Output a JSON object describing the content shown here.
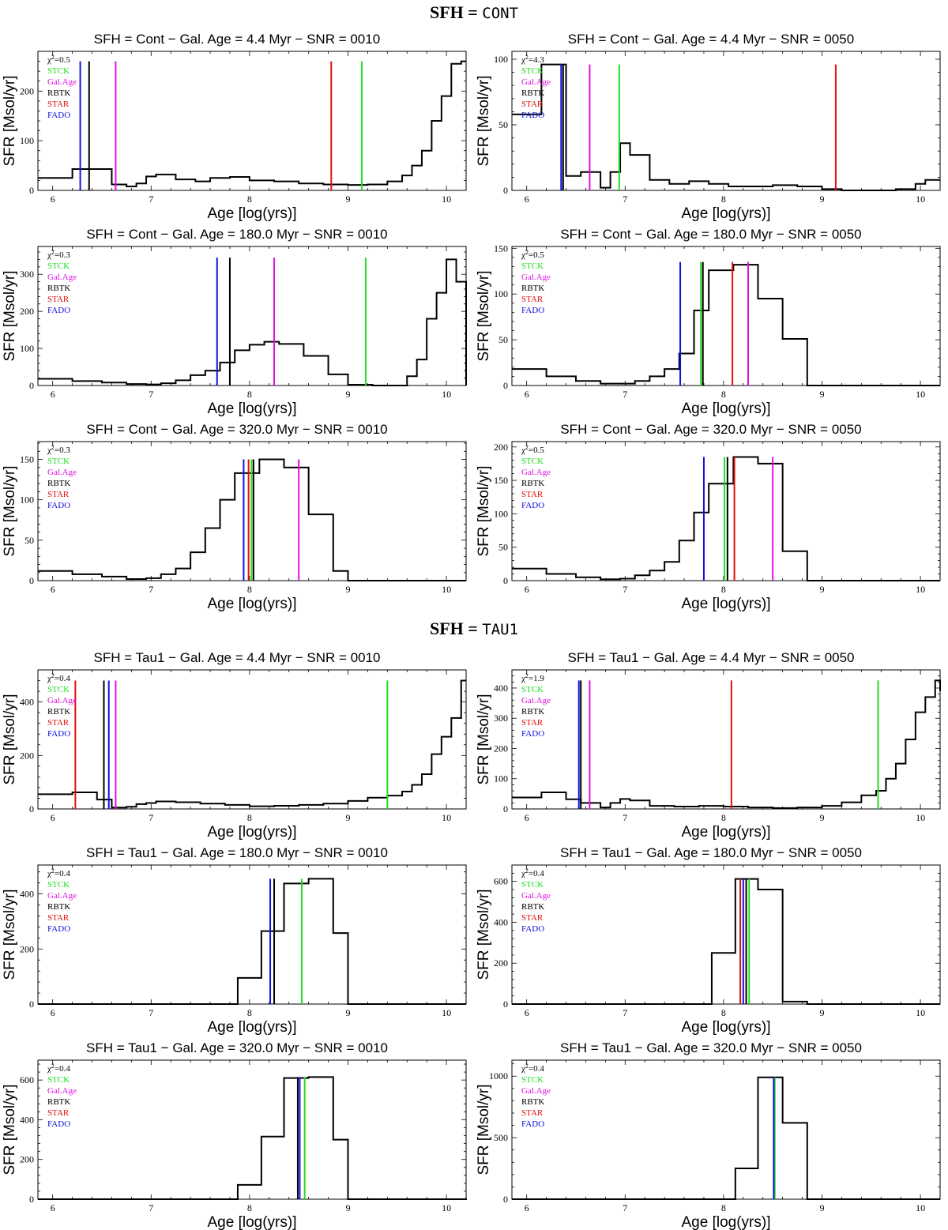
{
  "sections": [
    {
      "label": "SFH = ",
      "code": "CONT"
    },
    {
      "label": "SFH = ",
      "code": "TAU1"
    }
  ],
  "legend_colors": {
    "STCK": "#22dd22",
    "Gal.Age": "#e010e0",
    "RBTK": "#000000",
    "STAR": "#e01010",
    "FADO": "#1010e0"
  },
  "chart_data": [
    {
      "type": "line",
      "title": "SFH = Cont − Gal. Age = 4.4 Myr − SNR = 0010",
      "xlabel": "Age [log(yrs)]",
      "ylabel": "SFR [Msol/yr]",
      "xlim": [
        5.85,
        10.2
      ],
      "ylim": [
        0,
        280
      ],
      "yticks": [
        0,
        100,
        200
      ],
      "xticks": [
        6,
        7,
        8,
        9,
        10
      ],
      "chi2": "=0.5",
      "series": [
        {
          "name": "SFH",
          "x": [
            5.85,
            6.2,
            6.5,
            6.6,
            6.75,
            6.85,
            6.95,
            7.05,
            7.25,
            7.45,
            7.6,
            7.8,
            8.0,
            8.25,
            8.5,
            8.75,
            9.0,
            9.2,
            9.4,
            9.55,
            9.65,
            9.75,
            9.85,
            9.95,
            10.05,
            10.15,
            10.2
          ],
          "y": [
            25,
            43,
            43,
            12,
            8,
            14,
            28,
            32,
            22,
            18,
            25,
            27,
            20,
            18,
            14,
            12,
            11,
            12,
            18,
            30,
            50,
            80,
            140,
            190,
            255,
            260,
            260
          ]
        }
      ],
      "markers": [
        {
          "label": "FADO",
          "x": 6.28,
          "top": 260
        },
        {
          "label": "RBTK",
          "x": 6.37,
          "top": 260
        },
        {
          "label": "Gal.Age",
          "x": 6.64,
          "top": 260
        },
        {
          "label": "STAR",
          "x": 8.83,
          "top": 260
        },
        {
          "label": "STCK",
          "x": 9.14,
          "top": 260
        }
      ]
    },
    {
      "type": "line",
      "title": "SFH = Cont − Gal. Age = 4.4 Myr − SNR = 0050",
      "xlabel": "Age [log(yrs)]",
      "ylabel": "SFR [Msol/yr]",
      "xlim": [
        5.85,
        10.2
      ],
      "ylim": [
        0,
        106
      ],
      "yticks": [
        0,
        50,
        100
      ],
      "xticks": [
        6,
        7,
        8,
        9,
        10
      ],
      "chi2": "=4.3",
      "series": [
        {
          "name": "SFH",
          "x": [
            5.85,
            6.15,
            6.4,
            6.55,
            6.75,
            6.85,
            6.95,
            7.05,
            7.25,
            7.45,
            7.65,
            7.85,
            8.05,
            8.25,
            8.5,
            8.75,
            9.0,
            9.2,
            9.5,
            9.75,
            9.95,
            10.05,
            10.2
          ],
          "y": [
            58,
            96,
            11,
            14,
            2,
            14,
            36,
            27,
            8,
            5,
            7,
            5,
            3,
            3,
            4,
            3,
            1,
            0,
            0,
            1,
            5,
            8,
            8
          ]
        }
      ],
      "markers": [
        {
          "label": "FADO",
          "x": 6.35,
          "top": 96
        },
        {
          "label": "RBTK",
          "x": 6.37,
          "top": 96
        },
        {
          "label": "Gal.Age",
          "x": 6.64,
          "top": 96
        },
        {
          "label": "STCK",
          "x": 6.94,
          "top": 96
        },
        {
          "label": "STAR",
          "x": 9.14,
          "top": 96
        }
      ]
    },
    {
      "type": "line",
      "title": "SFH = Cont − Gal. Age = 180.0 Myr − SNR = 0010",
      "xlabel": "Age [log(yrs)]",
      "ylabel": "SFR [Msol/yr]",
      "xlim": [
        5.85,
        10.2
      ],
      "ylim": [
        0,
        375
      ],
      "yticks": [
        0,
        100,
        200,
        300
      ],
      "xticks": [
        6,
        7,
        8,
        9,
        10
      ],
      "chi2": "=0.3",
      "series": [
        {
          "name": "SFH",
          "x": [
            5.85,
            6.2,
            6.5,
            6.75,
            6.95,
            7.1,
            7.25,
            7.4,
            7.55,
            7.7,
            7.85,
            8.0,
            8.15,
            8.3,
            8.55,
            8.8,
            9.0,
            9.25,
            9.6,
            9.7,
            9.8,
            9.9,
            10.0,
            10.1,
            10.2
          ],
          "y": [
            18,
            12,
            8,
            4,
            3,
            6,
            14,
            28,
            40,
            62,
            95,
            110,
            118,
            112,
            80,
            30,
            2,
            0,
            25,
            70,
            180,
            250,
            340,
            280,
            0
          ]
        }
      ],
      "markers": [
        {
          "label": "FADO",
          "x": 7.67,
          "top": 345
        },
        {
          "label": "RBTK",
          "x": 7.8,
          "top": 345
        },
        {
          "label": "Gal.Age",
          "x": 8.25,
          "top": 345
        },
        {
          "label": "STCK",
          "x": 9.18,
          "top": 345
        }
      ]
    },
    {
      "type": "line",
      "title": "SFH = Cont − Gal. Age = 180.0 Myr − SNR = 0050",
      "xlabel": "Age [log(yrs)]",
      "ylabel": "SFR [Msol/yr]",
      "xlim": [
        5.85,
        10.2
      ],
      "ylim": [
        0,
        152
      ],
      "yticks": [
        0,
        50,
        100,
        150
      ],
      "xticks": [
        6,
        7,
        8,
        9,
        10
      ],
      "chi2": "=0.5",
      "series": [
        {
          "name": "SFH",
          "x": [
            5.85,
            6.2,
            6.5,
            6.75,
            6.95,
            7.1,
            7.25,
            7.4,
            7.55,
            7.7,
            7.85,
            8.1,
            8.35,
            8.6,
            8.85,
            9.0,
            9.2,
            9.5,
            10.2
          ],
          "y": [
            18,
            10,
            5,
            2,
            2,
            5,
            10,
            18,
            35,
            82,
            126,
            132,
            95,
            51,
            0,
            0,
            0,
            0,
            0
          ]
        }
      ],
      "markers": [
        {
          "label": "FADO",
          "x": 7.56,
          "top": 135
        },
        {
          "label": "STCK",
          "x": 7.77,
          "top": 135
        },
        {
          "label": "RBTK",
          "x": 7.79,
          "top": 135
        },
        {
          "label": "STAR",
          "x": 8.09,
          "top": 135
        },
        {
          "label": "Gal.Age",
          "x": 8.25,
          "top": 135
        }
      ]
    },
    {
      "type": "line",
      "title": "SFH = Cont − Gal. Age = 320.0 Myr − SNR = 0010",
      "xlabel": "Age [log(yrs)]",
      "ylabel": "SFR [Msol/yr]",
      "xlim": [
        5.85,
        10.2
      ],
      "ylim": [
        0,
        172
      ],
      "yticks": [
        0,
        50,
        100,
        150
      ],
      "xticks": [
        6,
        7,
        8,
        9,
        10
      ],
      "chi2": "=0.3",
      "series": [
        {
          "name": "SFH",
          "x": [
            5.85,
            6.2,
            6.5,
            6.75,
            6.95,
            7.1,
            7.25,
            7.4,
            7.55,
            7.7,
            7.85,
            8.1,
            8.35,
            8.6,
            8.85,
            9.0,
            9.2,
            9.5,
            10.2
          ],
          "y": [
            12,
            8,
            5,
            2,
            3,
            8,
            15,
            35,
            65,
            100,
            133,
            150,
            140,
            82,
            12,
            0,
            0,
            0,
            0
          ]
        }
      ],
      "markers": [
        {
          "label": "FADO",
          "x": 7.94,
          "top": 150
        },
        {
          "label": "STAR",
          "x": 7.99,
          "top": 150
        },
        {
          "label": "STCK",
          "x": 8.02,
          "top": 150
        },
        {
          "label": "RBTK",
          "x": 8.04,
          "top": 150
        },
        {
          "label": "Gal.Age",
          "x": 8.5,
          "top": 150
        }
      ]
    },
    {
      "type": "line",
      "title": "SFH = Cont − Gal. Age = 320.0 Myr − SNR = 0050",
      "xlabel": "Age [log(yrs)]",
      "ylabel": "SFR [Msol/yr]",
      "xlim": [
        5.85,
        10.2
      ],
      "ylim": [
        0,
        208
      ],
      "yticks": [
        0,
        50,
        100,
        150,
        200
      ],
      "xticks": [
        6,
        7,
        8,
        9,
        10
      ],
      "chi2": "=0.5",
      "series": [
        {
          "name": "SFH",
          "x": [
            5.85,
            6.2,
            6.5,
            6.75,
            6.95,
            7.1,
            7.25,
            7.4,
            7.55,
            7.7,
            7.85,
            8.1,
            8.35,
            8.6,
            8.85,
            9.0,
            9.2,
            9.5,
            10.2
          ],
          "y": [
            18,
            10,
            5,
            2,
            3,
            8,
            15,
            28,
            60,
            102,
            145,
            185,
            175,
            44,
            0,
            0,
            0,
            0,
            0
          ]
        }
      ],
      "markers": [
        {
          "label": "FADO",
          "x": 7.8,
          "top": 185
        },
        {
          "label": "STCK",
          "x": 8.01,
          "top": 185
        },
        {
          "label": "RBTK",
          "x": 8.04,
          "top": 185
        },
        {
          "label": "STAR",
          "x": 8.11,
          "top": 185
        },
        {
          "label": "Gal.Age",
          "x": 8.5,
          "top": 185
        }
      ]
    },
    {
      "type": "line",
      "title": "SFH = Tau1 − Gal. Age = 4.4 Myr − SNR = 0010",
      "xlabel": "Age [log(yrs)]",
      "ylabel": "SFR [Msol/yr]",
      "xlim": [
        5.85,
        10.2
      ],
      "ylim": [
        0,
        520
      ],
      "yticks": [
        0,
        200,
        400
      ],
      "xticks": [
        6,
        7,
        8,
        9,
        10
      ],
      "chi2": "=0.4",
      "series": [
        {
          "name": "SFH",
          "x": [
            5.85,
            6.2,
            6.45,
            6.6,
            6.75,
            6.85,
            6.95,
            7.05,
            7.25,
            7.5,
            7.75,
            8.0,
            8.25,
            8.5,
            8.75,
            9.0,
            9.2,
            9.4,
            9.55,
            9.65,
            9.75,
            9.85,
            9.95,
            10.05,
            10.15,
            10.2
          ],
          "y": [
            55,
            62,
            35,
            5,
            8,
            18,
            22,
            28,
            25,
            20,
            15,
            10,
            12,
            15,
            20,
            30,
            42,
            50,
            65,
            90,
            130,
            205,
            270,
            340,
            480,
            480
          ]
        }
      ],
      "markers": [
        {
          "label": "STAR",
          "x": 6.23,
          "top": 480
        },
        {
          "label": "RBTK",
          "x": 6.52,
          "top": 480
        },
        {
          "label": "FADO",
          "x": 6.57,
          "top": 480
        },
        {
          "label": "Gal.Age",
          "x": 6.64,
          "top": 480
        },
        {
          "label": "STCK",
          "x": 9.4,
          "top": 480
        }
      ]
    },
    {
      "type": "line",
      "title": "SFH = Tau1 − Gal. Age = 4.4 Myr − SNR = 0050",
      "xlabel": "Age [log(yrs)]",
      "ylabel": "SFR [Msol/yr]",
      "xlim": [
        5.85,
        10.2
      ],
      "ylim": [
        0,
        460
      ],
      "yticks": [
        0,
        100,
        200,
        300,
        400
      ],
      "xticks": [
        6,
        7,
        8,
        9,
        10
      ],
      "chi2": "=1.9",
      "series": [
        {
          "name": "SFH",
          "x": [
            5.85,
            6.15,
            6.4,
            6.55,
            6.75,
            6.85,
            6.95,
            7.05,
            7.25,
            7.5,
            7.75,
            8.0,
            8.25,
            8.5,
            8.75,
            9.0,
            9.2,
            9.4,
            9.55,
            9.65,
            9.75,
            9.85,
            9.95,
            10.05,
            10.15,
            10.2
          ],
          "y": [
            38,
            55,
            32,
            20,
            5,
            20,
            33,
            28,
            10,
            8,
            10,
            8,
            5,
            3,
            5,
            10,
            22,
            45,
            60,
            100,
            150,
            230,
            320,
            370,
            425,
            390
          ]
        }
      ],
      "markers": [
        {
          "label": "FADO",
          "x": 6.53,
          "top": 425
        },
        {
          "label": "RBTK",
          "x": 6.55,
          "top": 425
        },
        {
          "label": "Gal.Age",
          "x": 6.64,
          "top": 425
        },
        {
          "label": "STAR",
          "x": 8.08,
          "top": 425
        },
        {
          "label": "STCK",
          "x": 9.57,
          "top": 425
        }
      ]
    },
    {
      "type": "line",
      "title": "SFH = Tau1 − Gal. Age = 180.0 Myr − SNR = 0010",
      "xlabel": "Age [log(yrs)]",
      "ylabel": "SFR [Msol/yr]",
      "xlim": [
        5.85,
        10.2
      ],
      "ylim": [
        0,
        505
      ],
      "yticks": [
        0,
        200,
        400
      ],
      "xticks": [
        6,
        7,
        8,
        9,
        10
      ],
      "chi2": "=0.4",
      "series": [
        {
          "name": "SFH",
          "x": [
            5.85,
            7.5,
            7.88,
            8.12,
            8.35,
            8.6,
            8.85,
            9.0,
            9.2,
            10.2
          ],
          "y": [
            0,
            0,
            95,
            265,
            438,
            455,
            258,
            0,
            0,
            0
          ]
        }
      ],
      "markers": [
        {
          "label": "FADO",
          "x": 8.21,
          "top": 455
        },
        {
          "label": "RBTK",
          "x": 8.25,
          "top": 455
        },
        {
          "label": "STCK",
          "x": 8.53,
          "top": 455
        }
      ]
    },
    {
      "type": "line",
      "title": "SFH = Tau1 − Gal. Age = 180.0 Myr − SNR = 0050",
      "xlabel": "Age [log(yrs)]",
      "ylabel": "SFR [Msol/yr]",
      "xlim": [
        5.85,
        10.2
      ],
      "ylim": [
        0,
        680
      ],
      "yticks": [
        0,
        200,
        400,
        600
      ],
      "xticks": [
        6,
        7,
        8,
        9,
        10
      ],
      "chi2": "=0.4",
      "series": [
        {
          "name": "SFH",
          "x": [
            5.85,
            7.5,
            7.88,
            8.12,
            8.35,
            8.6,
            8.85,
            9.0,
            10.2
          ],
          "y": [
            0,
            0,
            250,
            612,
            560,
            12,
            0,
            0,
            0
          ]
        }
      ],
      "markers": [
        {
          "label": "STAR",
          "x": 8.17,
          "top": 612
        },
        {
          "label": "FADO",
          "x": 8.2,
          "top": 612
        },
        {
          "label": "RBTK",
          "x": 8.23,
          "top": 612
        },
        {
          "label": "STCK",
          "x": 8.26,
          "top": 612
        }
      ]
    },
    {
      "type": "line",
      "title": "SFH = Tau1 − Gal. Age = 320.0 Myr − SNR = 0010",
      "xlabel": "Age [log(yrs)]",
      "ylabel": "SFR [Msol/yr]",
      "xlim": [
        5.85,
        10.2
      ],
      "ylim": [
        0,
        700
      ],
      "yticks": [
        0,
        200,
        400,
        600
      ],
      "xticks": [
        6,
        7,
        8,
        9,
        10
      ],
      "chi2": "=0.4",
      "series": [
        {
          "name": "SFH",
          "x": [
            5.85,
            7.5,
            7.88,
            8.12,
            8.35,
            8.6,
            8.85,
            9.0,
            10.1,
            10.2
          ],
          "y": [
            0,
            0,
            72,
            315,
            610,
            615,
            300,
            0,
            0,
            5
          ]
        }
      ],
      "markers": [
        {
          "label": "RBTK",
          "x": 8.49,
          "top": 615
        },
        {
          "label": "FADO",
          "x": 8.51,
          "top": 615
        },
        {
          "label": "STCK",
          "x": 8.56,
          "top": 615
        }
      ]
    },
    {
      "type": "line",
      "title": "SFH = Tau1 − Gal. Age = 320.0 Myr − SNR = 0050",
      "xlabel": "Age [log(yrs)]",
      "ylabel": "SFR [Msol/yr]",
      "xlim": [
        5.85,
        10.2
      ],
      "ylim": [
        0,
        1130
      ],
      "yticks": [
        0,
        500,
        1000
      ],
      "xticks": [
        6,
        7,
        8,
        9,
        10
      ],
      "chi2": "=0.4",
      "series": [
        {
          "name": "SFH",
          "x": [
            5.85,
            7.9,
            8.12,
            8.35,
            8.6,
            8.85,
            9.0,
            10.2
          ],
          "y": [
            0,
            0,
            250,
            990,
            620,
            0,
            0,
            0
          ]
        }
      ],
      "markers": [
        {
          "label": "STCK",
          "x": 8.52,
          "top": 990
        },
        {
          "label": "FADO",
          "x": 8.51,
          "top": 990
        }
      ]
    }
  ]
}
